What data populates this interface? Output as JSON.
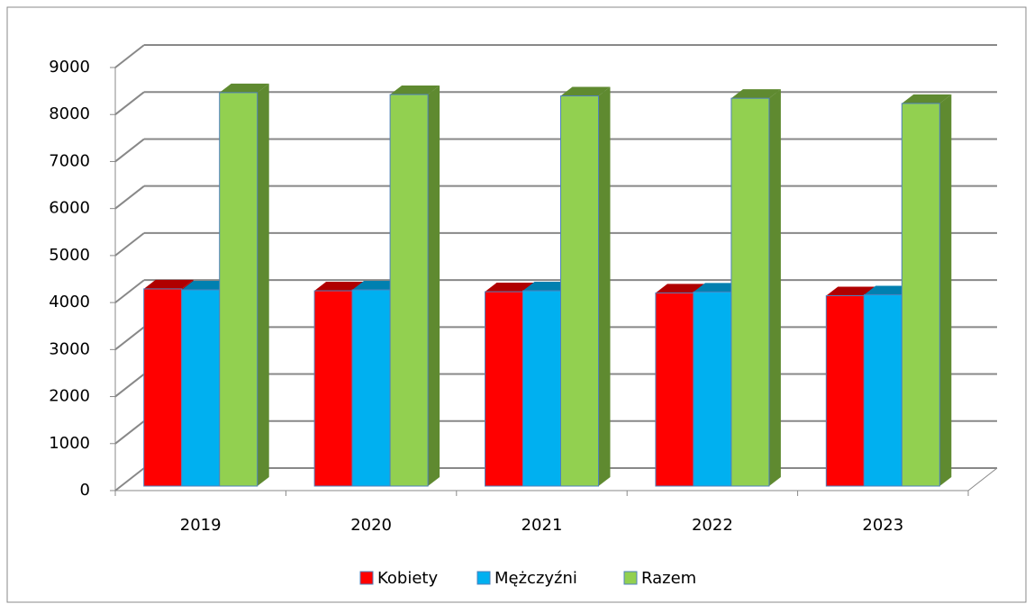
{
  "chart_data": {
    "type": "bar3d",
    "categories": [
      "2019",
      "2020",
      "2021",
      "2022",
      "2023"
    ],
    "series": [
      {
        "name": "Kobiety",
        "color": "#ff0000",
        "side": "#b00000",
        "values": [
          4195,
          4155,
          4135,
          4110,
          4050
        ]
      },
      {
        "name": "Mężczyźni",
        "color": "#00b0f0",
        "side": "#0080b0",
        "values": [
          4175,
          4175,
          4155,
          4130,
          4070
        ]
      },
      {
        "name": "Razem",
        "color": "#92d050",
        "side": "#5f8a30",
        "values": [
          8370,
          8330,
          8300,
          8250,
          8140
        ]
      }
    ],
    "ylim": [
      0,
      9000
    ],
    "yticks": [
      0,
      1000,
      2000,
      3000,
      4000,
      5000,
      6000,
      7000,
      8000,
      9000
    ],
    "grid": true,
    "legend": "bottom"
  }
}
